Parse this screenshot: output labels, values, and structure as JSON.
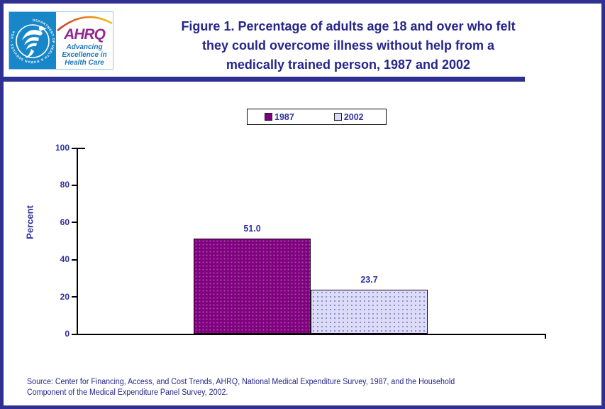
{
  "header": {
    "logo": {
      "acronym": "AHRQ",
      "tagline_line1": "Advancing",
      "tagline_line2": "Excellence in",
      "tagline_line3": "Health Care",
      "seal_text": "DEPARTMENT OF HEALTH & HUMAN SERVICES · USA"
    },
    "title_line1": "Figure 1. Percentage of adults age 18 and over who felt",
    "title_line2": "they could overcome illness without help from a",
    "title_line3": "medically trained person, 1987 and 2002"
  },
  "chart_data": {
    "type": "bar",
    "title": "Figure 1. Percentage of adults age 18 and over who felt they could overcome illness without help from a medically trained person, 1987 and 2002",
    "categories": [
      "1987",
      "2002"
    ],
    "values": [
      51.0,
      23.7
    ],
    "value_labels": [
      "51.0",
      "23.7"
    ],
    "series_colors": [
      "#800080",
      "#dcdcf8"
    ],
    "xlabel": "",
    "ylabel": "Percent",
    "ylim": [
      0,
      100
    ],
    "yticks": [
      0,
      20,
      40,
      60,
      80,
      100
    ],
    "grid": false,
    "legend": [
      "1987",
      "2002"
    ],
    "legend_position": "top-center"
  },
  "source": {
    "line1": "Source: Center for Financing, Access, and Cost Trends, AHRQ, National Medical Expenditure Survey, 1987, and the Household",
    "line2": "Component of the Medical Expenditure Panel Survey, 2002."
  },
  "colors": {
    "frame_navy": "#2e3192",
    "title_navy": "#26268b",
    "chart_text": "#30309c",
    "axis_color": "#000000",
    "bar_1987_dot": "#a050a0",
    "bar_2002_dot": "#8888cc",
    "hhs_blue": "#1887c9",
    "ahrq_purple": "#93278f",
    "tagline_blue": "#1b75bb"
  }
}
